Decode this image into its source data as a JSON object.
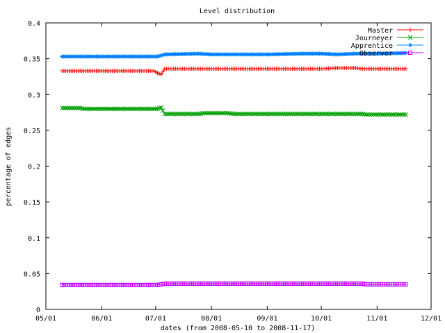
{
  "chart_data": {
    "type": "line",
    "title": "Level distribution",
    "xlabel": "dates (from 2008-05-10 to 2008-11-17)",
    "ylabel": "percentage of edges",
    "x_type": "date",
    "xlim": [
      "2008-05-01",
      "2008-12-01"
    ],
    "ylim": [
      0,
      0.4
    ],
    "x_ticks": [
      {
        "date": "2008-05-01",
        "label": "05/01"
      },
      {
        "date": "2008-06-01",
        "label": "06/01"
      },
      {
        "date": "2008-07-01",
        "label": "07/01"
      },
      {
        "date": "2008-08-01",
        "label": "08/01"
      },
      {
        "date": "2008-09-01",
        "label": "09/01"
      },
      {
        "date": "2008-10-01",
        "label": "10/01"
      },
      {
        "date": "2008-11-01",
        "label": "11/01"
      },
      {
        "date": "2008-12-01",
        "label": "12/01"
      }
    ],
    "y_ticks": [
      {
        "value": 0,
        "label": "0"
      },
      {
        "value": 0.05,
        "label": "0.05"
      },
      {
        "value": 0.1,
        "label": "0.1"
      },
      {
        "value": 0.15,
        "label": "0.15"
      },
      {
        "value": 0.2,
        "label": "0.2"
      },
      {
        "value": 0.25,
        "label": "0.25"
      },
      {
        "value": 0.3,
        "label": "0.3"
      },
      {
        "value": 0.35,
        "label": "0.35"
      },
      {
        "value": 0.4,
        "label": "0.4"
      }
    ],
    "grid": false,
    "legend_position": "top-right",
    "series": [
      {
        "name": "Master",
        "color": "#ff0000",
        "marker": "plus",
        "points": [
          {
            "x": "2008-05-10",
            "y": 0.333
          },
          {
            "x": "2008-06-10",
            "y": 0.333
          },
          {
            "x": "2008-06-30",
            "y": 0.333
          },
          {
            "x": "2008-07-02",
            "y": 0.33
          },
          {
            "x": "2008-07-04",
            "y": 0.328
          },
          {
            "x": "2008-07-06",
            "y": 0.336
          },
          {
            "x": "2008-08-01",
            "y": 0.336
          },
          {
            "x": "2008-09-01",
            "y": 0.336
          },
          {
            "x": "2008-10-01",
            "y": 0.336
          },
          {
            "x": "2008-10-10",
            "y": 0.337
          },
          {
            "x": "2008-10-20",
            "y": 0.337
          },
          {
            "x": "2008-10-24",
            "y": 0.336
          },
          {
            "x": "2008-11-17",
            "y": 0.336
          }
        ]
      },
      {
        "name": "Journeyer",
        "color": "#00a000",
        "marker": "cross",
        "points": [
          {
            "x": "2008-05-10",
            "y": 0.281
          },
          {
            "x": "2008-05-20",
            "y": 0.281
          },
          {
            "x": "2008-05-22",
            "y": 0.28
          },
          {
            "x": "2008-07-02",
            "y": 0.28
          },
          {
            "x": "2008-07-04",
            "y": 0.282
          },
          {
            "x": "2008-07-06",
            "y": 0.273
          },
          {
            "x": "2008-07-25",
            "y": 0.273
          },
          {
            "x": "2008-07-28",
            "y": 0.274
          },
          {
            "x": "2008-08-10",
            "y": 0.274
          },
          {
            "x": "2008-08-14",
            "y": 0.273
          },
          {
            "x": "2008-10-24",
            "y": 0.273
          },
          {
            "x": "2008-10-26",
            "y": 0.272
          },
          {
            "x": "2008-11-17",
            "y": 0.272
          }
        ]
      },
      {
        "name": "Apprentice",
        "color": "#0080ff",
        "marker": "asterisk",
        "points": [
          {
            "x": "2008-05-10",
            "y": 0.353
          },
          {
            "x": "2008-07-02",
            "y": 0.353
          },
          {
            "x": "2008-07-06",
            "y": 0.356
          },
          {
            "x": "2008-07-25",
            "y": 0.357
          },
          {
            "x": "2008-08-01",
            "y": 0.356
          },
          {
            "x": "2008-09-01",
            "y": 0.356
          },
          {
            "x": "2008-09-20",
            "y": 0.357
          },
          {
            "x": "2008-10-01",
            "y": 0.357
          },
          {
            "x": "2008-10-10",
            "y": 0.356
          },
          {
            "x": "2008-10-20",
            "y": 0.357
          },
          {
            "x": "2008-11-01",
            "y": 0.357
          },
          {
            "x": "2008-11-17",
            "y": 0.358
          }
        ]
      },
      {
        "name": "Observer",
        "color": "#c000ff",
        "marker": "square",
        "points": [
          {
            "x": "2008-05-10",
            "y": 0.034
          },
          {
            "x": "2008-07-02",
            "y": 0.034
          },
          {
            "x": "2008-07-06",
            "y": 0.036
          },
          {
            "x": "2008-08-01",
            "y": 0.036
          },
          {
            "x": "2008-09-01",
            "y": 0.036
          },
          {
            "x": "2008-10-01",
            "y": 0.036
          },
          {
            "x": "2008-10-24",
            "y": 0.036
          },
          {
            "x": "2008-10-26",
            "y": 0.035
          },
          {
            "x": "2008-11-17",
            "y": 0.035
          }
        ]
      }
    ]
  }
}
